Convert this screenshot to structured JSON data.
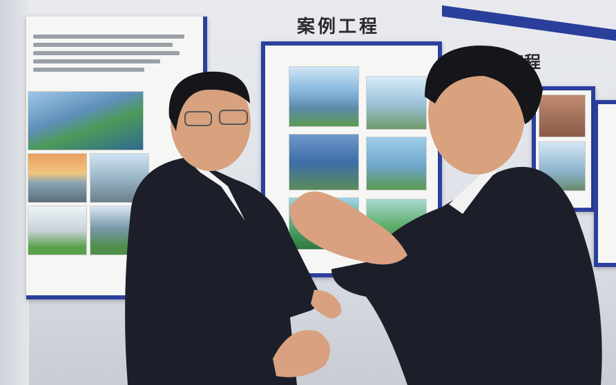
{
  "exhibit": {
    "heading": "案例工程",
    "heading_partial": "工程"
  },
  "colors": {
    "board_frame": "#2b3f9e",
    "suit": "#1c1f2a",
    "wall": "#e5e7ec"
  }
}
